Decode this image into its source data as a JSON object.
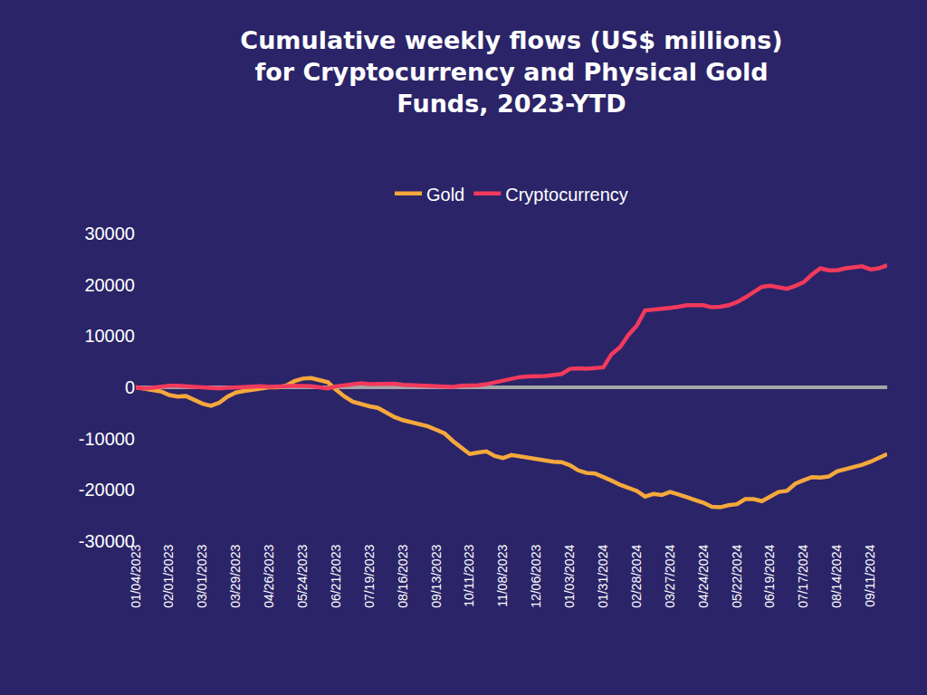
{
  "chart_data": {
    "type": "line",
    "title": "Cumulative weekly flows (US$ millions) for Cryptocurrency and Physical Gold Funds, 2023-YTD",
    "categories": [
      "01/04/2023",
      null,
      null,
      null,
      "02/01/2023",
      null,
      null,
      null,
      "03/01/2023",
      null,
      null,
      null,
      "03/29/2023",
      null,
      null,
      null,
      "04/26/2023",
      null,
      null,
      null,
      "05/24/2023",
      null,
      null,
      null,
      "06/21/2023",
      null,
      null,
      null,
      "07/19/2023",
      null,
      null,
      null,
      "08/16/2023",
      null,
      null,
      null,
      "09/13/2023",
      null,
      null,
      null,
      "10/11/2023",
      null,
      null,
      null,
      "11/08/2023",
      null,
      null,
      null,
      "12/06/2023",
      null,
      null,
      null,
      "01/03/2024",
      null,
      null,
      null,
      "01/31/2024",
      null,
      null,
      null,
      "02/28/2024",
      null,
      null,
      null,
      "03/27/2024",
      null,
      null,
      null,
      "04/24/2024",
      null,
      null,
      null,
      "05/22/2024",
      null,
      null,
      null,
      "06/19/2024",
      null,
      null,
      null,
      "07/17/2024",
      null,
      null,
      null,
      "08/14/2024",
      null,
      null,
      null,
      "09/11/2024",
      null,
      null
    ],
    "series": [
      {
        "name": "Gold",
        "color": "#f5a83c",
        "values": [
          0,
          -300,
          -500,
          -800,
          -1500,
          -1800,
          -1700,
          -2500,
          -3200,
          -3600,
          -3000,
          -1800,
          -1000,
          -700,
          -400,
          -100,
          0,
          0,
          300,
          1200,
          1700,
          1800,
          1500,
          1000,
          -500,
          -1800,
          -2800,
          -3300,
          -3700,
          -4000,
          -5000,
          -5800,
          -6400,
          -6800,
          -7200,
          -7600,
          -8300,
          -9000,
          -10500,
          -11800,
          -13000,
          -12700,
          -12500,
          -13400,
          -13800,
          -13200,
          -13500,
          -13700,
          -13900,
          -14200,
          -14500,
          -14600,
          -15200,
          -16200,
          -16700,
          -16800,
          -17400,
          -18200,
          -19000,
          -19600,
          -20200,
          -21300,
          -20800,
          -21000,
          -20400,
          -20900,
          -21400,
          -21800,
          -22500,
          -23300,
          -23400,
          -23000,
          -22800,
          -21800,
          -21800,
          -22200,
          -21300,
          -20400,
          -20200,
          -18800,
          -18100,
          -17500,
          -17600,
          -17400,
          -16400,
          -16000,
          -15500,
          -15100,
          -14500,
          -13800,
          -13000
        ]
      },
      {
        "name": "Cryptocurrency",
        "color": "#f23a5c",
        "values": [
          0,
          -200,
          -100,
          100,
          300,
          300,
          200,
          100,
          100,
          0,
          -200,
          -100,
          0,
          0,
          100,
          200,
          100,
          100,
          200,
          300,
          300,
          200,
          0,
          -200,
          200,
          400,
          600,
          800,
          600,
          600,
          700,
          700,
          500,
          400,
          300,
          300,
          200,
          100,
          100,
          300,
          300,
          400,
          600,
          1000,
          1300,
          1600,
          2000,
          2100,
          2100,
          2200,
          2400,
          2600,
          3600,
          3700,
          3600,
          3800,
          3900,
          6500,
          7800,
          10200,
          12000,
          15000,
          15100,
          15300,
          15500,
          15700,
          16000,
          16000,
          16000,
          15600,
          15700,
          16000,
          16600,
          17500,
          18500,
          19600,
          19800,
          19500,
          19200,
          19800,
          20500,
          22000,
          23200,
          22800,
          22800,
          23200,
          23400,
          23600,
          23000,
          23200,
          23800
        ]
      }
    ],
    "ylim": [
      -30000,
      30000
    ],
    "yticks": [
      -30000,
      -20000,
      -10000,
      0,
      10000,
      20000,
      30000
    ],
    "grid": false,
    "legend": "top"
  }
}
